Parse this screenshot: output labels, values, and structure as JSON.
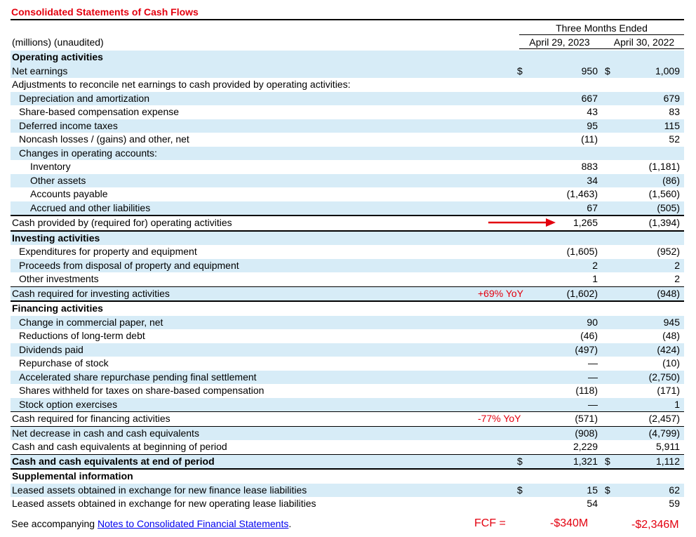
{
  "title": "Consolidated Statements of Cash Flows",
  "header": {
    "units": "(millions) (unaudited)",
    "period": "Three Months Ended",
    "col1": "April 29, 2023",
    "col2": "April 30, 2022"
  },
  "rows": [
    {
      "label": "Operating activities",
      "bold": true,
      "shade": true
    },
    {
      "label": "Net earnings",
      "d1": "$",
      "v1": "950",
      "d2": "$",
      "v2": "1,009",
      "shade": true
    },
    {
      "label": "Adjustments to reconcile net earnings to cash provided by operating activities:"
    },
    {
      "label": "Depreciation and amortization",
      "v1": "667",
      "v2": "679",
      "indent": 1,
      "shade": true
    },
    {
      "label": "Share-based compensation expense",
      "v1": "43",
      "v2": "83",
      "indent": 1
    },
    {
      "label": "Deferred income taxes",
      "v1": "95",
      "v2": "115",
      "indent": 1,
      "shade": true
    },
    {
      "label": "Noncash losses / (gains) and other, net",
      "v1": "(11)",
      "v2": "52",
      "indent": 1
    },
    {
      "label": "Changes in operating accounts:",
      "indent": 1,
      "shade": true
    },
    {
      "label": "Inventory",
      "v1": "883",
      "v2": "(1,181)",
      "indent": 2
    },
    {
      "label": "Other assets",
      "v1": "34",
      "v2": "(86)",
      "indent": 2,
      "shade": true
    },
    {
      "label": "Accounts payable",
      "v1": "(1,463)",
      "v2": "(1,560)",
      "indent": 2
    },
    {
      "label": "Accrued and other liabilities",
      "v1": "67",
      "v2": "(505)",
      "indent": 2,
      "shade": true
    },
    {
      "label": "Cash provided by (required for) operating activities",
      "v1": "1,265",
      "v2": "(1,394)",
      "border": "top-thick"
    },
    {
      "label": "Investing activities",
      "bold": true,
      "shade": true,
      "border": "top-thick"
    },
    {
      "label": "Expenditures for property and equipment",
      "v1": "(1,605)",
      "v2": "(952)",
      "indent": 1
    },
    {
      "label": "Proceeds from disposal of property and equipment",
      "v1": "2",
      "v2": "2",
      "indent": 1,
      "shade": true
    },
    {
      "label": "Other investments",
      "v1": "1",
      "v2": "2",
      "indent": 1
    },
    {
      "label": "Cash required for investing activities",
      "v1": "(1,602)",
      "v2": "(948)",
      "shade": true,
      "border": "top-thin",
      "note": "+69% YoY"
    },
    {
      "label": "Financing activities",
      "bold": true,
      "border": "top-thick"
    },
    {
      "label": "Change in commercial paper, net",
      "v1": "90",
      "v2": "945",
      "indent": 1,
      "shade": true
    },
    {
      "label": "Reductions of long-term debt",
      "v1": "(46)",
      "v2": "(48)",
      "indent": 1
    },
    {
      "label": "Dividends paid",
      "v1": "(497)",
      "v2": "(424)",
      "indent": 1,
      "shade": true
    },
    {
      "label": "Repurchase of stock",
      "v1": "—",
      "v2": "(10)",
      "indent": 1
    },
    {
      "label": "Accelerated share repurchase pending final settlement",
      "v1": "—",
      "v2": "(2,750)",
      "indent": 1,
      "shade": true
    },
    {
      "label": "Shares withheld for taxes on share-based compensation",
      "v1": "(118)",
      "v2": "(171)",
      "indent": 1
    },
    {
      "label": "Stock option exercises",
      "v1": "—",
      "v2": "1",
      "indent": 1,
      "shade": true
    },
    {
      "label": "Cash required for financing activities",
      "v1": "(571)",
      "v2": "(2,457)",
      "border": "top-thin",
      "note": "-77% YoY"
    },
    {
      "label": "Net decrease in cash and cash equivalents",
      "v1": "(908)",
      "v2": "(4,799)",
      "shade": true,
      "border": "top-thin"
    },
    {
      "label": "Cash and cash equivalents at beginning of period",
      "v1": "2,229",
      "v2": "5,911"
    },
    {
      "label": "Cash and cash equivalents at end of period",
      "d1": "$",
      "v1": "1,321",
      "d2": "$",
      "v2": "1,112",
      "bold": true,
      "shade": true,
      "border": "top-thin",
      "bottom": "thick"
    },
    {
      "label": "Supplemental information",
      "bold": true
    },
    {
      "label": "Leased assets obtained in exchange for new finance lease liabilities",
      "d1": "$",
      "v1": "15",
      "d2": "$",
      "v2": "62",
      "shade": true
    },
    {
      "label": "Leased assets obtained in exchange for new operating lease liabilities",
      "v1": "54",
      "v2": "59"
    }
  ],
  "footer": {
    "prefix": "See accompanying ",
    "link": "Notes to Consolidated Financial Statements",
    "suffix": "."
  },
  "annotations": {
    "fcf_label": "FCF =",
    "fcf_2023": "-$340M",
    "fcf_2022": "-$2,346M",
    "accent_color": "#e3000f",
    "shade_color": "#d7ecf7"
  }
}
